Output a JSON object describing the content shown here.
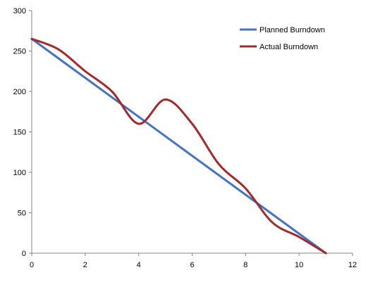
{
  "chart_data": {
    "type": "line",
    "title": "",
    "xlabel": "",
    "ylabel": "",
    "xlim": [
      0,
      12
    ],
    "ylim": [
      0,
      300
    ],
    "x_ticks": [
      "0",
      "2",
      "4",
      "6",
      "8",
      "10",
      "12"
    ],
    "y_ticks": [
      "0",
      "50",
      "100",
      "150",
      "200",
      "250",
      "300"
    ],
    "grid": false,
    "legend_position": "top-right",
    "series": [
      {
        "name": "Planned Burndown",
        "color": "#4472C4",
        "x": [
          0,
          11
        ],
        "y": [
          265,
          0
        ]
      },
      {
        "name": "Actual Burndown",
        "color": "#A5292A",
        "x": [
          0,
          1,
          2,
          3,
          4,
          5,
          6,
          7,
          8,
          9,
          10,
          11
        ],
        "y": [
          265,
          252,
          225,
          200,
          160,
          190,
          160,
          110,
          80,
          38,
          20,
          0
        ]
      }
    ]
  }
}
